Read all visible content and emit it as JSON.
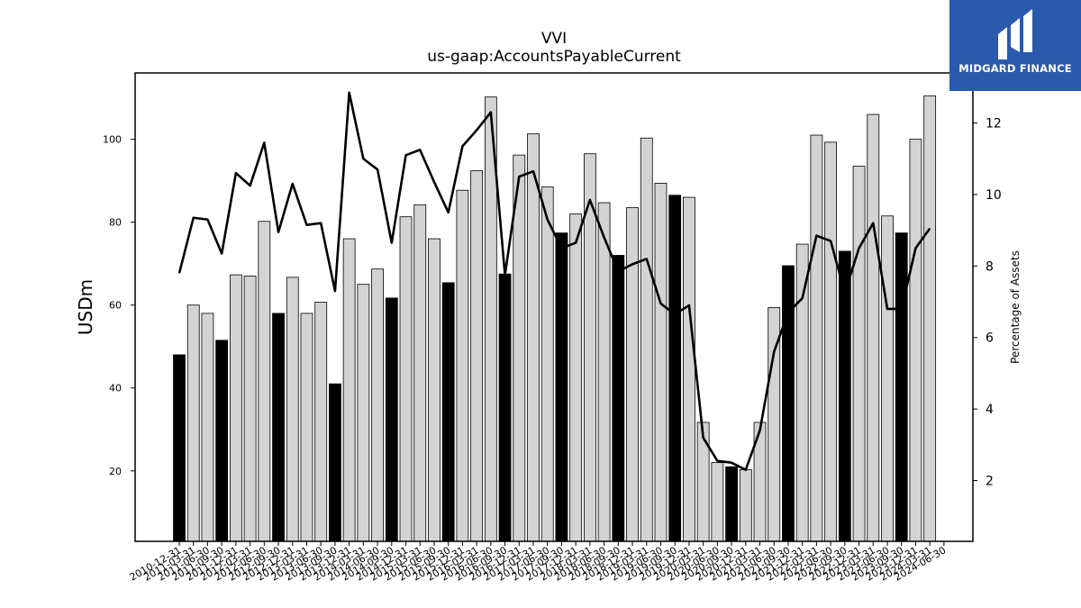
{
  "chart_data": {
    "type": "bar",
    "title": "VVI",
    "subtitle": "us-gaap:AccountsPayableCurrent",
    "ylabel": "USDm",
    "y2label": "Percentage of Assets",
    "ylim": [
      3,
      116
    ],
    "y2lim": [
      0.3,
      13.4
    ],
    "yticks": [
      20,
      40,
      60,
      80,
      100
    ],
    "y2ticks": [
      2,
      4,
      6,
      8,
      10,
      12
    ],
    "categories": [
      "2010-12-31",
      "2011-03-31",
      "2011-06-30",
      "2011-09-30",
      "2011-12-31",
      "2012-03-31",
      "2012-06-30",
      "2012-09-30",
      "2012-12-31",
      "2013-03-31",
      "2013-06-30",
      "2013-09-30",
      "2013-12-31",
      "2014-03-31",
      "2014-06-30",
      "2014-09-30",
      "2014-12-31",
      "2015-03-31",
      "2015-06-30",
      "2015-09-30",
      "2015-12-31",
      "2016-03-31",
      "2016-06-30",
      "2016-09-30",
      "2016-12-31",
      "2017-03-31",
      "2017-06-30",
      "2017-09-30",
      "2017-12-31",
      "2018-03-31",
      "2018-06-30",
      "2018-09-30",
      "2018-12-31",
      "2019-03-31",
      "2019-06-30",
      "2019-09-30",
      "2019-12-31",
      "2020-03-31",
      "2020-06-30",
      "2020-09-30",
      "2020-12-31",
      "2021-03-31",
      "2021-06-30",
      "2021-09-30",
      "2021-12-31",
      "2022-03-31",
      "2022-06-30",
      "2022-09-30",
      "2022-12-31",
      "2023-03-31",
      "2023-06-30",
      "2023-09-30",
      "2023-12-31",
      "2024-03-31",
      "2024-06-30"
    ],
    "series": [
      {
        "kind": "bar",
        "axis": "left",
        "values": [
          48,
          60,
          58,
          51.5,
          67.3,
          67,
          80.2,
          58,
          66.7,
          58,
          60.7,
          41,
          76,
          65,
          68.7,
          61.7,
          81.3,
          84.2,
          76,
          65.4,
          87.7,
          92.4,
          110.2,
          67.5,
          96.2,
          101.3,
          88.5,
          77.4,
          82,
          96.5,
          84.7,
          72,
          83.5,
          100.3,
          89.4,
          86.5,
          86,
          31.7,
          22,
          21,
          20.3,
          31.7,
          59.4,
          69.5,
          74.7,
          101,
          99.3,
          73,
          93.5,
          106,
          81.5,
          77.4,
          100,
          110.5,
          null
        ],
        "highlight": [
          true,
          false,
          false,
          true,
          false,
          false,
          false,
          true,
          false,
          false,
          false,
          true,
          false,
          false,
          false,
          true,
          false,
          false,
          false,
          true,
          false,
          false,
          false,
          true,
          false,
          false,
          false,
          true,
          false,
          false,
          false,
          true,
          false,
          false,
          false,
          true,
          false,
          false,
          false,
          true,
          false,
          false,
          false,
          true,
          false,
          false,
          false,
          true,
          false,
          false,
          false,
          true,
          false,
          false,
          false
        ]
      },
      {
        "kind": "line",
        "axis": "right",
        "values": [
          7.8,
          9.35,
          9.3,
          8.35,
          10.6,
          10.25,
          11.45,
          8.95,
          10.3,
          9.15,
          9.2,
          7.3,
          12.85,
          11,
          10.7,
          8.65,
          11.1,
          11.25,
          10.35,
          9.5,
          11.35,
          11.8,
          12.3,
          7.75,
          10.5,
          10.65,
          9.3,
          8.5,
          8.65,
          9.85,
          8.8,
          7.85,
          8.05,
          8.2,
          6.95,
          6.65,
          6.9,
          3.2,
          2.55,
          2.5,
          2.3,
          3.4,
          5.6,
          6.7,
          7.1,
          8.85,
          8.7,
          7.25,
          8.5,
          9.2,
          6.8,
          6.8,
          8.5,
          9.05,
          null
        ]
      }
    ],
    "colors": {
      "bar_light": "#d3d3d3",
      "bar_dark": "#000000",
      "line": "#000000"
    }
  },
  "logo": {
    "text": "MIDGARD FINANCE",
    "color": "#2b5aad"
  }
}
